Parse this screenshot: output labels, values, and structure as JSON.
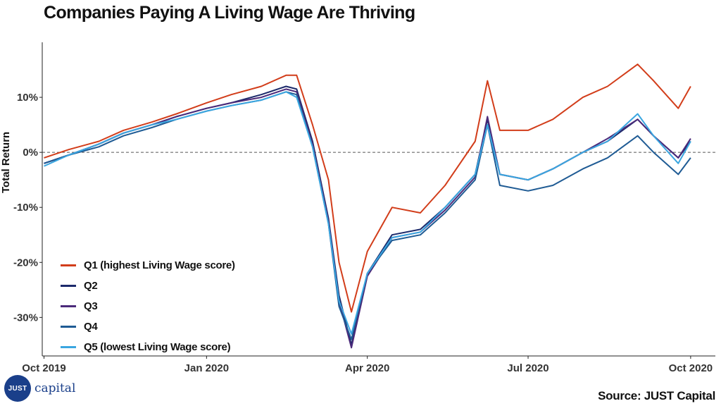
{
  "title": "Companies Paying A Living Wage Are Thriving",
  "source": "Source: JUST Capital",
  "logo": {
    "badge": "JUST",
    "word": "capital",
    "color": "#1a3f8a"
  },
  "chart_data": {
    "type": "line",
    "title": "Companies Paying A Living Wage Are Thriving",
    "xlabel": "",
    "ylabel": "Total Return",
    "xlim": [
      "2019-09-30",
      "2020-10-15"
    ],
    "ylim": [
      -37,
      20
    ],
    "y_ticks": [
      {
        "value": 10,
        "label": "10%"
      },
      {
        "value": 0,
        "label": "0%"
      },
      {
        "value": -10,
        "label": "-10%"
      },
      {
        "value": -20,
        "label": "-20%"
      },
      {
        "value": -30,
        "label": "-30%"
      }
    ],
    "x_ticks": [
      {
        "date": "2019-10-01",
        "label": "Oct 2019"
      },
      {
        "date": "2020-01-01",
        "label": "Jan 2020"
      },
      {
        "date": "2020-04-01",
        "label": "Apr 2020"
      },
      {
        "date": "2020-07-01",
        "label": "Jul 2020"
      },
      {
        "date": "2020-10-01",
        "label": "Oct 2020"
      }
    ],
    "reference_line": {
      "y": 0,
      "style": "dashed"
    },
    "grid": true,
    "legend_position": "bottom-left",
    "dates": [
      "2019-10-01",
      "2019-10-15",
      "2019-11-01",
      "2019-11-15",
      "2019-12-01",
      "2019-12-15",
      "2020-01-01",
      "2020-01-15",
      "2020-02-01",
      "2020-02-15",
      "2020-02-21",
      "2020-03-01",
      "2020-03-10",
      "2020-03-16",
      "2020-03-23",
      "2020-04-01",
      "2020-04-15",
      "2020-05-01",
      "2020-05-15",
      "2020-06-01",
      "2020-06-08",
      "2020-06-15",
      "2020-07-01",
      "2020-07-15",
      "2020-08-01",
      "2020-08-15",
      "2020-09-01",
      "2020-09-10",
      "2020-09-24",
      "2020-10-01"
    ],
    "series": [
      {
        "name": "Q1 (highest Living Wage score)",
        "color": "#d23d1a",
        "values": [
          -1,
          0.5,
          2,
          4,
          5.5,
          7,
          9,
          10.5,
          12,
          14,
          14,
          5,
          -5,
          -20,
          -29,
          -18,
          -10,
          -11,
          -6,
          2,
          13,
          4,
          4,
          6,
          10,
          12,
          16,
          13,
          8,
          12
        ]
      },
      {
        "name": "Q2",
        "color": "#1c2a6b",
        "values": [
          -2,
          -0.5,
          1.5,
          3.5,
          5,
          6.5,
          8,
          9,
          10.5,
          12,
          11.5,
          2,
          -12,
          -26,
          -35,
          -22,
          -15,
          -14,
          -10,
          -4,
          6,
          -4,
          -5,
          -3,
          0,
          2,
          6,
          3,
          -1,
          2
        ]
      },
      {
        "name": "Q3",
        "color": "#4b2a7a",
        "values": [
          -2,
          -0.5,
          1.5,
          3.5,
          5,
          6.5,
          8,
          9,
          10,
          11.5,
          11,
          1.5,
          -12.5,
          -27,
          -35.5,
          -22.5,
          -15.5,
          -14.5,
          -10.5,
          -4.5,
          6.5,
          -4,
          -5,
          -3,
          0,
          2.5,
          6,
          3,
          -1,
          2.5
        ]
      },
      {
        "name": "Q4",
        "color": "#1f5b94",
        "values": [
          -2,
          -0.5,
          1,
          3,
          4.5,
          6,
          7.5,
          8.5,
          9.5,
          11,
          10.5,
          1,
          -13,
          -28,
          -34,
          -22,
          -16,
          -15,
          -11,
          -5,
          5,
          -6,
          -7,
          -6,
          -3,
          -1,
          3,
          0,
          -4,
          -1
        ]
      },
      {
        "name": "Q5 (lowest Living Wage score)",
        "color": "#3aa6e0",
        "values": [
          -2.5,
          -0.5,
          1.5,
          3.5,
          5,
          6,
          7.5,
          8.5,
          9.5,
          11,
          10,
          1,
          -13,
          -27,
          -33,
          -22,
          -15.5,
          -14.5,
          -10,
          -4,
          5,
          -4,
          -5,
          -3,
          0,
          2,
          7,
          3,
          -2,
          2
        ]
      }
    ]
  }
}
